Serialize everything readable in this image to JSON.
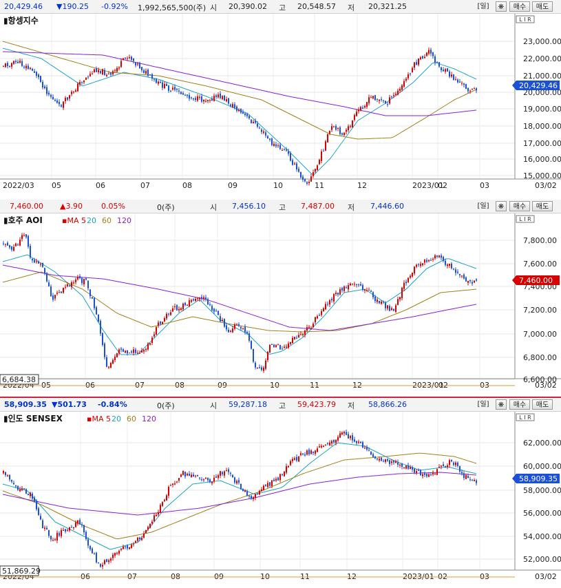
{
  "panels": [
    {
      "id": "hsi",
      "info": {
        "price": "20,429.46",
        "change": "▼190.25",
        "pct": "-0.92%",
        "volume": "1,992,565,500(주)",
        "open_label": "시",
        "open": "20,390.02",
        "high_label": "고",
        "high": "20,548.57",
        "low_label": "저",
        "low": "20,321.25"
      },
      "title": "항셍지수",
      "ma_legend": [],
      "price_tag": "20,429.46",
      "y_ticks": [
        "23,000.00",
        "22,000.00",
        "21,000.00",
        "20,000.00",
        "19,000.00",
        "18,000.00",
        "17,000.00",
        "16,000.00",
        "15,000.00"
      ],
      "x_ticks": [
        "2022/03",
        "05",
        "06",
        "07",
        "08",
        "09",
        "10",
        "11",
        "12",
        "2023/01",
        "02",
        "03",
        "03/02"
      ]
    },
    {
      "id": "asx",
      "info": {
        "price": "7,460.00",
        "change": "▲3.90",
        "pct": "0.05%",
        "volume": "0(주)",
        "open_label": "시",
        "open": "7,456.10",
        "high_label": "고",
        "high": "7,487.00",
        "low_label": "저",
        "low": "7,446.60"
      },
      "title": "호주 AOI",
      "ma_legend": [
        {
          "t": "MA 5",
          "c": "#d60000"
        },
        {
          "t": "20",
          "c": "#1aa3c8"
        },
        {
          "t": "60",
          "c": "#a0801a"
        },
        {
          "t": "120",
          "c": "#8a1fd0"
        }
      ],
      "price_tag": "7,460.00",
      "low_tag": "6,684.38",
      "y_ticks": [
        "7,800.00",
        "7,600.00",
        "7,400.00",
        "7,200.00",
        "7,000.00",
        "6,800.00",
        "6,600.00"
      ],
      "x_ticks": [
        "2022/04",
        "05",
        "06",
        "07",
        "08",
        "09",
        "10",
        "11",
        "12",
        "2023/01",
        "02",
        "03",
        "03/02"
      ]
    },
    {
      "id": "sensex",
      "info": {
        "price": "58,909.35",
        "change": "▼501.73",
        "pct": "-0.84%",
        "volume": "0(주)",
        "open_label": "시",
        "open": "59,287.18",
        "high_label": "고",
        "high": "59,423.79",
        "low_label": "저",
        "low": "58,866.26"
      },
      "title": "인도 SENSEX",
      "ma_legend": [
        {
          "t": "MA 5",
          "c": "#d60000"
        },
        {
          "t": "20",
          "c": "#1aa3c8"
        },
        {
          "t": "60",
          "c": "#a0801a"
        },
        {
          "t": "120",
          "c": "#8a1fd0"
        }
      ],
      "price_tag": "58,909.35",
      "low_tag": "51,869.29",
      "y_ticks": [
        "62,000.00",
        "60,000.00",
        "58,000.00",
        "56,000.00",
        "54,000.00",
        "52,000.00"
      ],
      "x_ticks": [
        "2022/04",
        "06",
        "07",
        "08",
        "09",
        "10",
        "11",
        "12",
        "2023/01",
        "02",
        "03",
        "03/02"
      ]
    }
  ],
  "buttons": {
    "period": "[일]",
    "settings": "❋",
    "buy": "매수",
    "sell": "매도"
  },
  "scale_badge": "L I R"
}
